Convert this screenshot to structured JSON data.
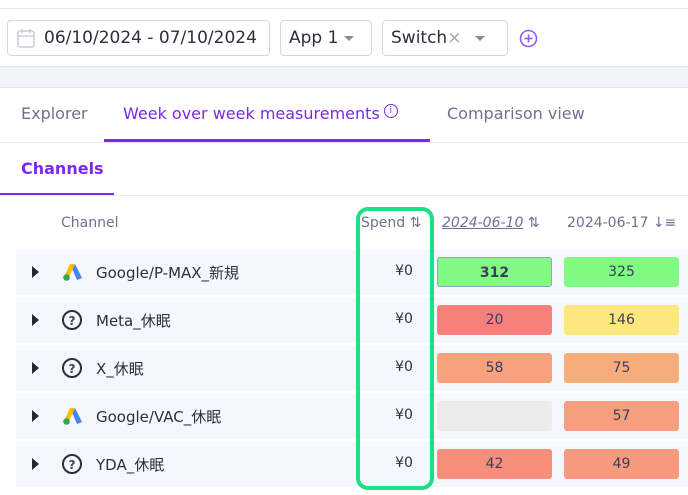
{
  "filters": {
    "date_range": "06/10/2024 - 07/10/2024",
    "app": "App 1",
    "switch": "Switch",
    "clear": "×"
  },
  "tabs": [
    {
      "label": "Explorer"
    },
    {
      "label": "Week over week measurements",
      "active": true,
      "info": "i"
    },
    {
      "label": "Comparison view"
    }
  ],
  "subtabs": [
    {
      "label": "Channels",
      "active": true
    }
  ],
  "table": {
    "headers": {
      "channel": "Channel",
      "spend": "Spend ⇅",
      "week1": "2024-06-10",
      "week1_sort": "⇅",
      "week2": "2024-06-17",
      "week2_sort": "↓≡"
    },
    "rows": [
      {
        "icon": "google-ads-icon",
        "channel": "Google/P-MAX_新規",
        "spend": "¥0",
        "w1": "312",
        "w1_color": "#82f982",
        "w2": "325",
        "w2_color": "#82f982"
      },
      {
        "icon": "question-icon",
        "channel": "Meta_休眠",
        "spend": "¥0",
        "w1": "20",
        "w1_color": "#f57f7b",
        "w2": "146",
        "w2_color": "#fde880"
      },
      {
        "icon": "question-icon",
        "channel": "X_休眠",
        "spend": "¥0",
        "w1": "58",
        "w1_color": "#f6a27c",
        "w2": "75",
        "w2_color": "#f7ac7c"
      },
      {
        "icon": "google-ads-icon",
        "channel": "Google/VAC_休眠",
        "spend": "¥0",
        "w1": "",
        "w1_color": "#ebebeb",
        "w2": "57",
        "w2_color": "#f69f7e"
      },
      {
        "icon": "question-icon",
        "channel": "YDA_休眠",
        "spend": "¥0",
        "w1": "42",
        "w1_color": "#f58f7c",
        "w2": "49",
        "w2_color": "#f69a7d"
      }
    ]
  },
  "colors": {
    "accent": "#7c2ae8",
    "highlight": "#1ede86"
  }
}
